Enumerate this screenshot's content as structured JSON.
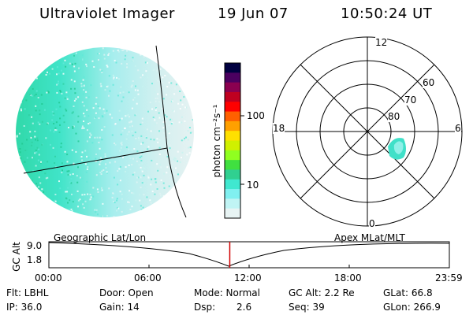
{
  "header": {
    "instrument": "Ultraviolet Imager",
    "date": "19 Jun 07",
    "time": "10:50:24 UT"
  },
  "colorbar": {
    "label": "photon cm⁻²s⁻¹",
    "ticks": [
      "100",
      "10"
    ],
    "colors": [
      "#000040",
      "#4b0060",
      "#8b0050",
      "#c00020",
      "#ff0000",
      "#ff6000",
      "#ffa000",
      "#ffe000",
      "#d0f000",
      "#90ff20",
      "#40e040",
      "#30d090",
      "#40e8d0",
      "#80f0f0",
      "#c0f4f4",
      "#e8f4f4"
    ]
  },
  "polar_plot": {
    "mlt_labels": [
      "12",
      "18",
      "6",
      "0"
    ],
    "lat_labels": [
      "60",
      "70",
      "80"
    ]
  },
  "timeline": {
    "left_title": "Geographic Lat/Lon",
    "right_title": "Apex MLat/MLT",
    "axis_label": "GC Alt",
    "y_ticks": [
      "9.0",
      "1.8"
    ],
    "x_ticks": [
      "00:00",
      "06:00",
      "12:00",
      "18:00",
      "23:59"
    ],
    "marker_time_fraction": 0.4517,
    "marker_color": "#d00000"
  },
  "status": {
    "flt": "Flt: LBHL",
    "ip": "IP: 36.0",
    "door": "Door: Open",
    "gain": "Gain: 14",
    "mode": "Mode: Normal",
    "dsp_label": "Dsp:",
    "dsp_value": "2.6",
    "gc_alt": "GC Alt: 2.2 Re",
    "seq": "Seq: 39",
    "glat": "GLat:  66.8",
    "glon": "GLon: 266.9"
  }
}
